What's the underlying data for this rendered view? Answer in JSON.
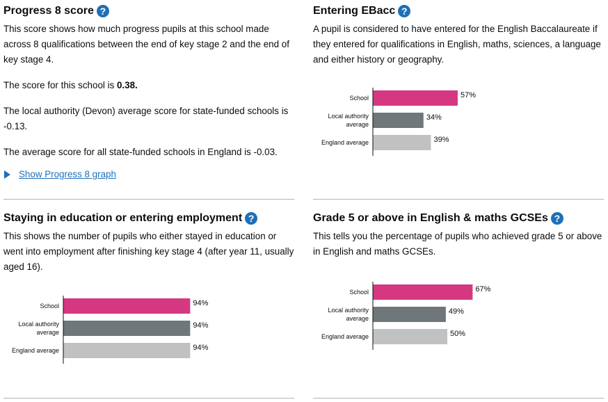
{
  "progress8": {
    "title": "Progress 8 score",
    "help_icon": "?",
    "description": "This score shows how much progress pupils at this school made across 8 qualifications between the end of key stage 2 and the end of key stage 4.",
    "school_prefix": "The score for this school is ",
    "school_score": "0.38.",
    "la_text": "The local authority (Devon) average score for state-funded schools is -0.13.",
    "england_text": "The average score for all state-funded schools in England is -0.03.",
    "show_graph_link": "Show Progress 8 graph"
  },
  "ebacc": {
    "title": "Entering EBacc",
    "help_icon": "?",
    "description": "A pupil is considered to have entered for the English Baccalaureate if they entered for qualifications in English, maths, sciences, a language and either history or geography."
  },
  "staying": {
    "title": "Staying in education or entering employment",
    "help_icon": "?",
    "description": "This shows the number of pupils who either stayed in education or went into employment after finishing key stage 4 (after year 11, usually aged 16)."
  },
  "grade5": {
    "title": "Grade 5 or above in English & maths GCSEs",
    "help_icon": "?",
    "description": "This tells you the percentage of pupils who achieved grade 5 or above in English and maths GCSEs."
  },
  "colors": {
    "school": "#d53880",
    "local_authority": "#6f777b",
    "england": "#bfc1c3",
    "link": "#1d70b8"
  },
  "chart_data": [
    {
      "type": "bar",
      "orientation": "horizontal",
      "categories": [
        [
          "School"
        ],
        [
          "Local authority",
          "average"
        ],
        [
          "England average"
        ]
      ],
      "values": [
        57,
        34,
        39
      ],
      "value_labels": [
        "57%",
        "34%",
        "39%"
      ],
      "xlim": [
        0,
        100
      ]
    },
    {
      "type": "bar",
      "orientation": "horizontal",
      "categories": [
        [
          "School"
        ],
        [
          "Local authority",
          "average"
        ],
        [
          "England average"
        ]
      ],
      "values": [
        94,
        94,
        94
      ],
      "value_labels": [
        "94%",
        "94%",
        "94%"
      ],
      "xlim": [
        0,
        100
      ]
    },
    {
      "type": "bar",
      "orientation": "horizontal",
      "categories": [
        [
          "School"
        ],
        [
          "Local authority",
          "average"
        ],
        [
          "England average"
        ]
      ],
      "values": [
        67,
        49,
        50
      ],
      "value_labels": [
        "67%",
        "49%",
        "50%"
      ],
      "xlim": [
        0,
        100
      ]
    }
  ]
}
